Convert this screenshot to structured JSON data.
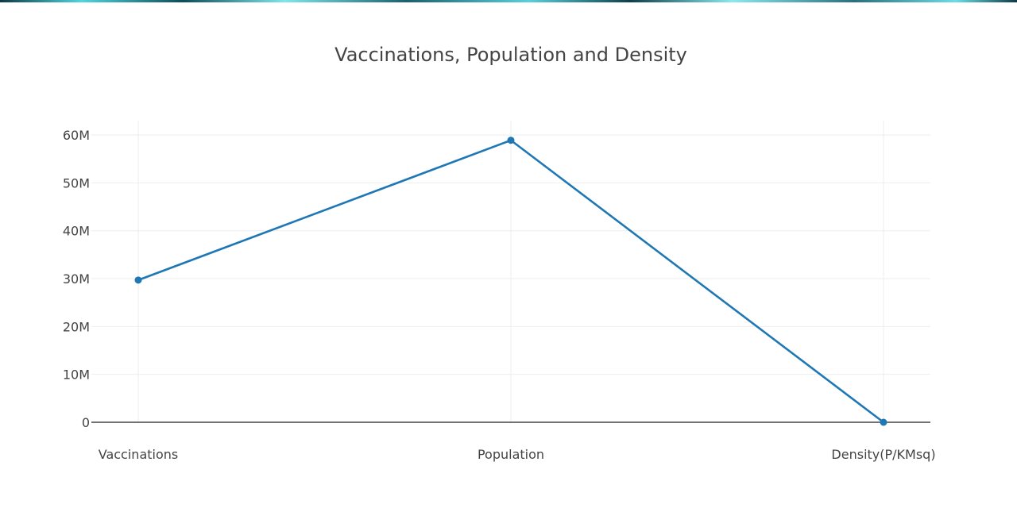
{
  "chart_data": {
    "type": "line",
    "title": "Vaccinations, Population and Density",
    "categories": [
      "Vaccinations",
      "Population",
      "Density(P/KMsq)"
    ],
    "series": [
      {
        "values": [
          29700000,
          58900000,
          200
        ]
      }
    ],
    "ylim": [
      0,
      63000000
    ],
    "y_ticks": [
      0,
      10000000,
      20000000,
      30000000,
      40000000,
      50000000,
      60000000
    ],
    "y_tick_labels": [
      "0",
      "10M",
      "20M",
      "30M",
      "40M",
      "50M",
      "60M"
    ],
    "grid": true,
    "line_color": "#1f77b4",
    "grid_color": "#eeeeee",
    "axis_color": "#444444"
  }
}
